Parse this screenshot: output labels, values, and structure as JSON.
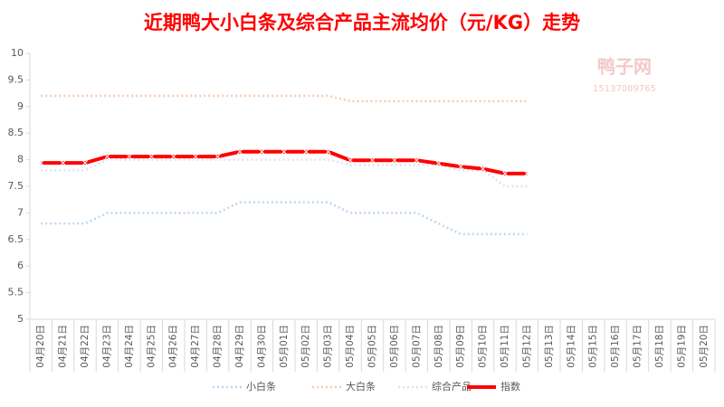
{
  "chart_data": {
    "type": "line",
    "title": "近期鸭大小白条及综合产品主流均价（元/KG）走势",
    "watermark": "鸭子网",
    "watermark_phone": "15137089765",
    "categories": [
      "04月20日",
      "04月21日",
      "04月22日",
      "04月23日",
      "04月24日",
      "04月25日",
      "04月26日",
      "04月27日",
      "04月28日",
      "04月29日",
      "04月30日",
      "05月01日",
      "05月02日",
      "05月03日",
      "05月04日",
      "05月05日",
      "05月06日",
      "05月07日",
      "05月08日",
      "05月09日",
      "05月10日",
      "05月11日",
      "05月12日",
      "05月13日",
      "05月14日",
      "05月15日",
      "05月16日",
      "05月17日",
      "05月18日",
      "05月19日",
      "05月20日"
    ],
    "series": [
      {
        "name": "小白条",
        "color": "#bdd7ee",
        "style": "dotted",
        "values": [
          6.8,
          6.8,
          6.8,
          7,
          7,
          7,
          7,
          7,
          7,
          7.2,
          7.2,
          7.2,
          7.2,
          7.2,
          7,
          7,
          7,
          7,
          6.8,
          6.6,
          6.6,
          6.6,
          6.6,
          null,
          null,
          null,
          null,
          null,
          null,
          null,
          null
        ]
      },
      {
        "name": "大白条",
        "color": "#f8cbad",
        "style": "dotted",
        "values": [
          9.2,
          9.2,
          9.2,
          9.2,
          9.2,
          9.2,
          9.2,
          9.2,
          9.2,
          9.2,
          9.2,
          9.2,
          9.2,
          9.2,
          9.1,
          9.1,
          9.1,
          9.1,
          9.1,
          9.1,
          9.1,
          9.1,
          9.1,
          null,
          null,
          null,
          null,
          null,
          null,
          null,
          null
        ]
      },
      {
        "name": "综合产品",
        "color": "#dae3f3",
        "style": "dotted",
        "values": [
          7.8,
          7.8,
          7.8,
          8,
          8,
          8,
          8,
          8,
          8,
          8,
          8,
          8,
          8,
          8,
          7.9,
          7.9,
          7.9,
          7.9,
          7.9,
          7.8,
          7.8,
          7.5,
          7.5,
          null,
          null,
          null,
          null,
          null,
          null,
          null,
          null
        ]
      },
      {
        "name": "指数",
        "color": "#ff0000",
        "style": "solid",
        "values": [
          7.94,
          7.94,
          7.94,
          8.06,
          8.06,
          8.06,
          8.06,
          8.06,
          8.06,
          8.15,
          8.15,
          8.15,
          8.15,
          8.15,
          7.99,
          7.99,
          7.99,
          7.99,
          7.93,
          7.87,
          7.83,
          7.74,
          7.74,
          null,
          null,
          null,
          null,
          null,
          null,
          null,
          null
        ]
      }
    ],
    "ylim": [
      5,
      10
    ],
    "yticks": [
      5,
      5.5,
      6,
      6.5,
      7,
      7.5,
      8,
      8.5,
      9,
      9.5,
      10
    ],
    "legend": "bottom"
  }
}
